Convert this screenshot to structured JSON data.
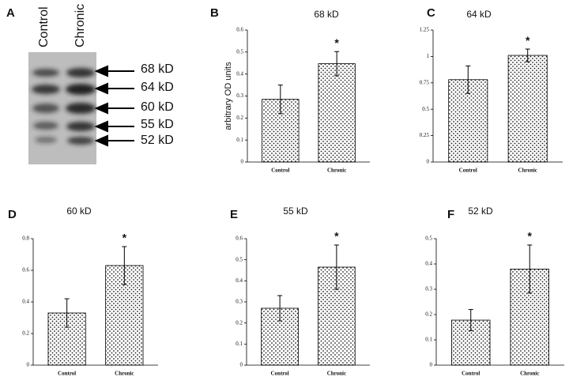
{
  "blot": {
    "panel_label": "A",
    "lanes": [
      "Control",
      "Chronic"
    ],
    "bands": [
      "68 kD",
      "64 kD",
      "60 kD",
      "55 kD",
      "52 kD"
    ]
  },
  "chart_data": [
    {
      "type": "bar",
      "panel_label": "B",
      "title": "68 kD",
      "y_label": "arbitrary OD units",
      "categories": [
        "Control",
        "Chronic"
      ],
      "values": [
        0.285,
        0.447
      ],
      "errors": [
        0.065,
        0.055
      ],
      "annotation": "*",
      "ylim": [
        0,
        0.6
      ],
      "yticks": [
        0,
        0.1,
        0.2,
        0.3,
        0.4,
        0.5,
        0.6
      ]
    },
    {
      "type": "bar",
      "panel_label": "C",
      "title": "64 kD",
      "categories": [
        "Control",
        "Chronic"
      ],
      "values": [
        0.78,
        1.01
      ],
      "errors": [
        0.13,
        0.06
      ],
      "annotation": "*",
      "ylim": [
        0,
        1.25
      ],
      "yticks": [
        0,
        0.25,
        0.5,
        0.75,
        1,
        1.25
      ]
    },
    {
      "type": "bar",
      "panel_label": "D",
      "title": "60 kD",
      "categories": [
        "Control",
        "Chronic"
      ],
      "values": [
        0.33,
        0.63
      ],
      "errors": [
        0.09,
        0.12
      ],
      "annotation": "*",
      "ylim": [
        0,
        0.8
      ],
      "yticks": [
        0,
        0.2,
        0.4,
        0.6,
        0.8
      ]
    },
    {
      "type": "bar",
      "panel_label": "E",
      "title": "55 kD",
      "categories": [
        "Control",
        "Chronic"
      ],
      "values": [
        0.27,
        0.465
      ],
      "errors": [
        0.06,
        0.105
      ],
      "annotation": "*",
      "ylim": [
        0,
        0.6
      ],
      "yticks": [
        0,
        0.1,
        0.2,
        0.3,
        0.4,
        0.5,
        0.6
      ]
    },
    {
      "type": "bar",
      "panel_label": "F",
      "title": "52 kD",
      "categories": [
        "Control",
        "Chronic"
      ],
      "values": [
        0.178,
        0.38
      ],
      "errors": [
        0.042,
        0.095
      ],
      "annotation": "*",
      "ylim": [
        0,
        0.5
      ],
      "yticks": [
        0,
        0.1,
        0.2,
        0.3,
        0.4,
        0.5
      ]
    }
  ]
}
